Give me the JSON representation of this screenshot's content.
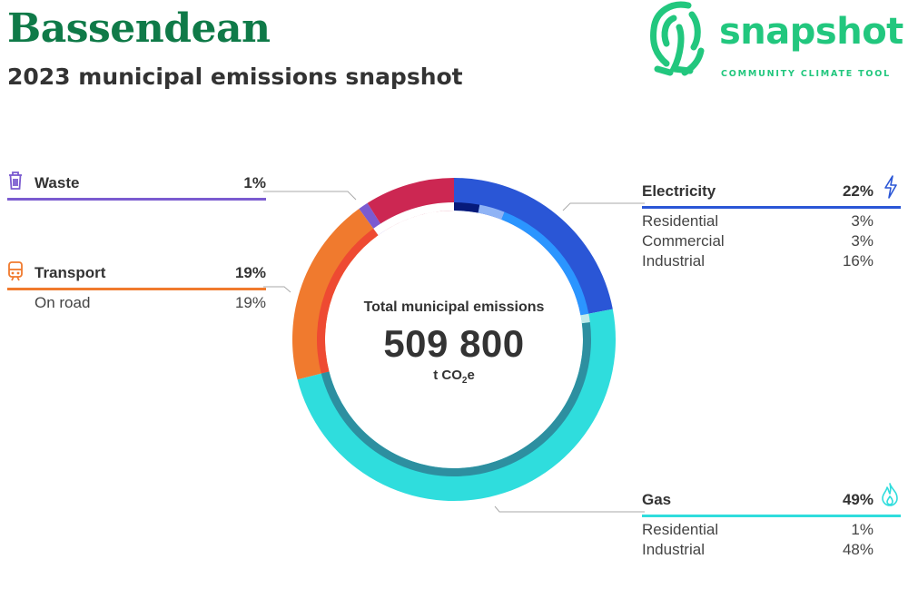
{
  "title": "Bassendean",
  "subtitle": "2023 municipal emissions snapshot",
  "logo": {
    "wordmark": "snapshot",
    "tagline": "COMMUNITY CLIMATE TOOL"
  },
  "center": {
    "label": "Total municipal emissions",
    "value": "509 800",
    "unit_prefix": "t CO",
    "unit_sub": "2",
    "unit_suffix": "e"
  },
  "colors": {
    "brand": "#0f7a48",
    "logo": "#22c77e",
    "electricity": "#2a56d6",
    "gas": "#2fdddd",
    "transport": "#f07a2e",
    "waste": "#7b5bd0",
    "other": "#cc2752"
  },
  "categories": {
    "waste": {
      "name": "Waste",
      "pct": "1%",
      "icon": "trash-icon"
    },
    "transport": {
      "name": "Transport",
      "pct": "19%",
      "icon": "train-icon",
      "subs": [
        {
          "name": "On road",
          "pct": "19%"
        }
      ]
    },
    "electricity": {
      "name": "Electricity",
      "pct": "22%",
      "icon": "lightning-icon",
      "subs": [
        {
          "name": "Residential",
          "pct": "3%"
        },
        {
          "name": "Commercial",
          "pct": "3%"
        },
        {
          "name": "Industrial",
          "pct": "16%"
        }
      ]
    },
    "gas": {
      "name": "Gas",
      "pct": "49%",
      "icon": "flame-icon",
      "subs": [
        {
          "name": "Residential",
          "pct": "1%"
        },
        {
          "name": "Industrial",
          "pct": "48%"
        }
      ]
    }
  },
  "chart_data": {
    "type": "pie",
    "total": 509800,
    "unit": "t CO2e",
    "outer": [
      {
        "name": "Electricity",
        "value": 22,
        "color": "#2a56d6"
      },
      {
        "name": "Gas",
        "value": 49,
        "color": "#2fdddd"
      },
      {
        "name": "Transport",
        "value": 19,
        "color": "#f07a2e"
      },
      {
        "name": "Waste",
        "value": 1,
        "color": "#7b5bd0"
      },
      {
        "value": 9,
        "color": "#cc2752"
      }
    ],
    "inner": [
      {
        "name": "Electricity Residential",
        "value": 3,
        "color": "#061a7a"
      },
      {
        "name": "Electricity Commercial",
        "value": 3,
        "color": "#8fb3f5"
      },
      {
        "name": "Electricity Industrial",
        "value": 16,
        "color": "#2b95ff"
      },
      {
        "name": "Gas Residential",
        "value": 1,
        "color": "#bfeaea"
      },
      {
        "name": "Gas Industrial",
        "value": 48,
        "color": "#2d8fa0"
      },
      {
        "name": "Transport On road",
        "value": 19,
        "color": "#ee4a32"
      },
      {
        "value": 10,
        "color": "#ffffff"
      }
    ]
  }
}
